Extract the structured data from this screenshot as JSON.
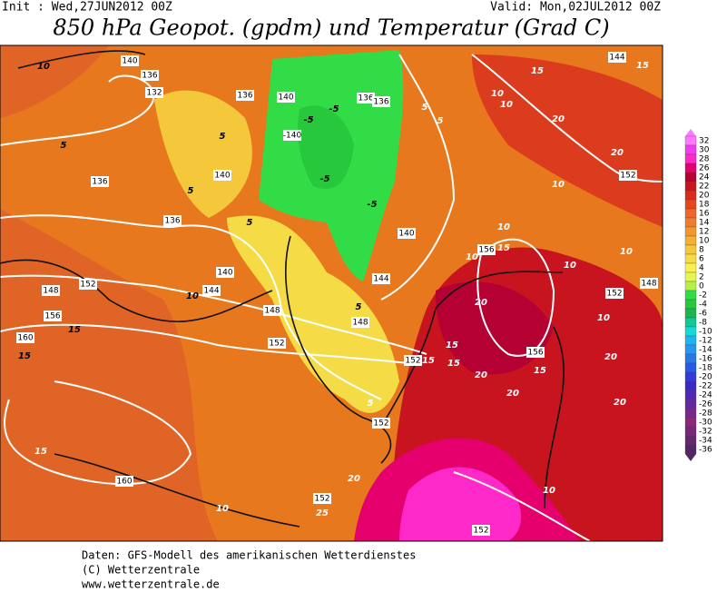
{
  "header": {
    "init": "Init : Wed,27JUN2012 00Z",
    "valid": "Valid: Mon,02JUL2012 00Z",
    "title": "850 hPa Geopot. (gpdm) und Temperatur (Grad C)"
  },
  "colorbar": {
    "levels": [
      32,
      30,
      28,
      26,
      24,
      22,
      20,
      18,
      16,
      14,
      12,
      10,
      8,
      6,
      4,
      2,
      0,
      -2,
      -4,
      -6,
      -8,
      -10,
      -12,
      -14,
      -16,
      -18,
      -20,
      -22,
      -24,
      -26,
      -28,
      -30,
      -32,
      -34,
      -36
    ],
    "colors": [
      "#ff78ff",
      "#f03cf0",
      "#ff28c8",
      "#e6006e",
      "#b40032",
      "#c8141e",
      "#dc281e",
      "#e6461e",
      "#f0642d",
      "#f07d2d",
      "#f5962d",
      "#f5af32",
      "#f5c83c",
      "#f5dc46",
      "#faf050",
      "#e6f550",
      "#b4f046",
      "#32dc46",
      "#28c83c",
      "#1eb450",
      "#14c896",
      "#14dcd2",
      "#1eb4f0",
      "#2896f0",
      "#2878e6",
      "#285ae6",
      "#323cdc",
      "#3c28c8",
      "#5028b4",
      "#6428a0",
      "#78288c",
      "#8c2878",
      "#782878",
      "#64286e",
      "#502864"
    ]
  },
  "map": {
    "contour_labels": [
      "10",
      "140",
      "136",
      "132",
      "136",
      "140",
      "136",
      "136",
      "5",
      "5",
      "10",
      "144",
      "15",
      "15",
      "10",
      "20",
      "5",
      "-5",
      "-5",
      "-140",
      "-5",
      "-5",
      "5",
      "140",
      "5",
      "136",
      "136",
      "10",
      "152",
      "20",
      "5",
      "10",
      "156",
      "15",
      "10",
      "10",
      "140",
      "140",
      "144",
      "10",
      "144",
      "148",
      "152",
      "156",
      "15",
      "148",
      "148",
      "5",
      "152",
      "160",
      "15",
      "20",
      "15",
      "10",
      "152",
      "148",
      "10",
      "20",
      "156",
      "15",
      "20",
      "20",
      "20",
      "152",
      "15",
      "15",
      "5",
      "152",
      "15",
      "160",
      "10",
      "20",
      "152",
      "25",
      "152",
      "10"
    ]
  },
  "footer": [
    "Daten: GFS-Modell des amerikanischen Wetterdienstes",
    "(C) Wetterzentrale",
    "www.wetterzentrale.de"
  ]
}
